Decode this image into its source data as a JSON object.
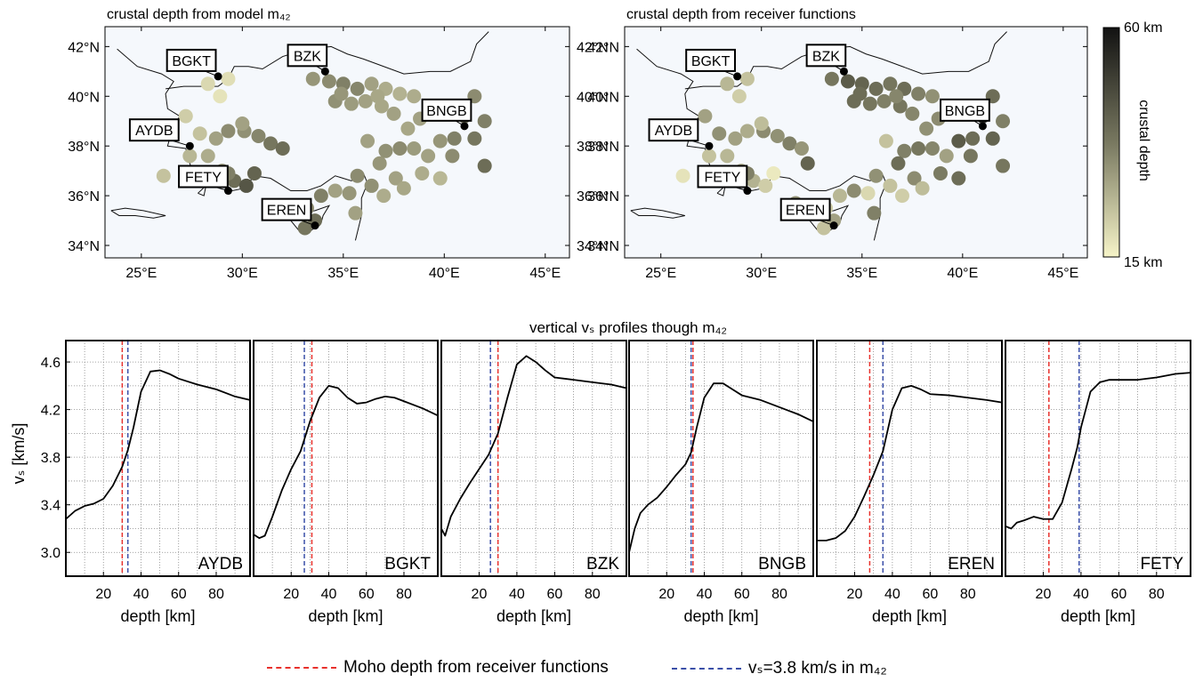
{
  "maps": [
    {
      "title": "crustal depth from model m₄₂",
      "lat_ticks": [
        "34°N",
        "36°N",
        "38°N",
        "40°N",
        "42°N"
      ],
      "lon_ticks": [
        "25°E",
        "30°E",
        "35°E",
        "40°E",
        "45°E"
      ],
      "stations": [
        {
          "name": "BGKT",
          "lon": 28.8,
          "lat": 40.8
        },
        {
          "name": "BZK",
          "lon": 34.1,
          "lat": 41.0
        },
        {
          "name": "AYDB",
          "lon": 27.4,
          "lat": 38.0
        },
        {
          "name": "BNGB",
          "lon": 41.0,
          "lat": 38.8
        },
        {
          "name": "FETY",
          "lon": 29.3,
          "lat": 36.2
        },
        {
          "name": "EREN",
          "lon": 33.6,
          "lat": 34.8
        }
      ]
    },
    {
      "title": "crustal depth from receiver functions",
      "lat_ticks": [
        "34°N",
        "36°N",
        "38°N",
        "40°N",
        "42°N"
      ],
      "lon_ticks": [
        "25°E",
        "30°E",
        "35°E",
        "40°E",
        "45°E"
      ],
      "stations": [
        {
          "name": "BGKT",
          "lon": 28.8,
          "lat": 40.8
        },
        {
          "name": "BZK",
          "lon": 34.1,
          "lat": 41.0
        },
        {
          "name": "AYDB",
          "lon": 27.4,
          "lat": 38.0
        },
        {
          "name": "BNGB",
          "lon": 41.0,
          "lat": 38.8
        },
        {
          "name": "FETY",
          "lon": 29.3,
          "lat": 36.2
        },
        {
          "name": "EREN",
          "lon": 33.6,
          "lat": 34.8
        }
      ]
    }
  ],
  "colorbar": {
    "top": "60 km",
    "bottom": "15 km",
    "label": "crustal depth",
    "color_low": "#f6f4c8",
    "color_high": "#121212"
  },
  "profiles_title": "vertical vₛ profiles though m₄₂",
  "ylabel": "vₛ [km/s]",
  "xlabel": "depth [km]",
  "y_ticks": [
    "3.0",
    "3.4",
    "3.8",
    "4.2",
    "4.6"
  ],
  "x_ticks": [
    "20",
    "40",
    "60",
    "80"
  ],
  "legend": {
    "red_label": "Moho depth from receiver functions",
    "blue_label": "vₛ=3.8 km/s in m₄₂",
    "red_color": "#e8312c",
    "blue_color": "#3a4fa8"
  },
  "chart_data": [
    {
      "type": "line",
      "title": "",
      "xlabel": "depth [km]",
      "ylabel": "vs [km/s]",
      "xlim": [
        0,
        98
      ],
      "ylim": [
        2.8,
        4.78
      ],
      "grid": true,
      "series": [
        {
          "name": "AYDB",
          "x": [
            0,
            5,
            10,
            15,
            20,
            25,
            30,
            33,
            36,
            40,
            45,
            50,
            55,
            60,
            70,
            80,
            90,
            98
          ],
          "y": [
            3.28,
            3.35,
            3.39,
            3.41,
            3.45,
            3.56,
            3.72,
            3.86,
            4.05,
            4.35,
            4.52,
            4.53,
            4.5,
            4.46,
            4.41,
            4.37,
            4.31,
            4.28
          ],
          "moho_rf": 30,
          "vs38_depth": 33
        },
        {
          "name": "BGKT",
          "x": [
            0,
            3,
            6,
            10,
            15,
            20,
            25,
            30,
            35,
            40,
            45,
            50,
            55,
            60,
            65,
            70,
            75,
            80,
            90,
            98
          ],
          "y": [
            3.15,
            3.12,
            3.14,
            3.3,
            3.52,
            3.7,
            3.85,
            4.1,
            4.3,
            4.4,
            4.38,
            4.3,
            4.25,
            4.26,
            4.29,
            4.31,
            4.3,
            4.27,
            4.21,
            4.15
          ],
          "moho_rf": 31,
          "vs38_depth": 27
        },
        {
          "name": "BZK",
          "x": [
            0,
            2,
            5,
            10,
            15,
            20,
            25,
            30,
            35,
            40,
            45,
            50,
            55,
            60,
            70,
            80,
            90,
            98
          ],
          "y": [
            3.2,
            3.14,
            3.3,
            3.45,
            3.58,
            3.7,
            3.82,
            4.0,
            4.3,
            4.58,
            4.65,
            4.6,
            4.53,
            4.47,
            4.45,
            4.43,
            4.41,
            4.38
          ],
          "moho_rf": 30,
          "vs38_depth": 26
        },
        {
          "name": "BNGB",
          "x": [
            0,
            3,
            6,
            10,
            15,
            20,
            25,
            30,
            33,
            36,
            40,
            45,
            50,
            55,
            60,
            70,
            80,
            90,
            98
          ],
          "y": [
            3.0,
            3.2,
            3.33,
            3.4,
            3.46,
            3.55,
            3.65,
            3.74,
            3.84,
            4.05,
            4.3,
            4.42,
            4.42,
            4.37,
            4.32,
            4.28,
            4.22,
            4.16,
            4.1
          ],
          "moho_rf": 34,
          "vs38_depth": 33
        },
        {
          "name": "EREN",
          "x": [
            0,
            5,
            10,
            15,
            20,
            25,
            30,
            35,
            40,
            45,
            50,
            55,
            60,
            70,
            80,
            90,
            98
          ],
          "y": [
            3.1,
            3.1,
            3.12,
            3.18,
            3.3,
            3.47,
            3.65,
            3.85,
            4.2,
            4.38,
            4.4,
            4.37,
            4.33,
            4.32,
            4.3,
            4.28,
            4.26
          ],
          "moho_rf": 28,
          "vs38_depth": 35
        },
        {
          "name": "FETY",
          "x": [
            0,
            3,
            6,
            10,
            15,
            20,
            25,
            30,
            35,
            38,
            40,
            45,
            50,
            55,
            60,
            70,
            80,
            90,
            98
          ],
          "y": [
            3.22,
            3.2,
            3.25,
            3.27,
            3.3,
            3.28,
            3.28,
            3.42,
            3.7,
            3.88,
            4.05,
            4.35,
            4.43,
            4.45,
            4.45,
            4.45,
            4.47,
            4.5,
            4.51
          ],
          "moho_rf": 23,
          "vs38_depth": 39
        }
      ]
    }
  ],
  "map_dots_m42": [
    {
      "lon": 28.3,
      "lat": 40.5,
      "d": 20
    },
    {
      "lon": 28.9,
      "lat": 40.0,
      "d": 18
    },
    {
      "lon": 29.3,
      "lat": 40.7,
      "d": 19
    },
    {
      "lon": 27.2,
      "lat": 39.2,
      "d": 22
    },
    {
      "lon": 27.9,
      "lat": 38.5,
      "d": 24
    },
    {
      "lon": 28.7,
      "lat": 38.3,
      "d": 30
    },
    {
      "lon": 29.3,
      "lat": 38.6,
      "d": 34
    },
    {
      "lon": 30.1,
      "lat": 38.6,
      "d": 33
    },
    {
      "lon": 30.8,
      "lat": 38.4,
      "d": 35
    },
    {
      "lon": 31.4,
      "lat": 38.1,
      "d": 38
    },
    {
      "lon": 32.0,
      "lat": 37.9,
      "d": 40
    },
    {
      "lon": 30.0,
      "lat": 38.9,
      "d": 30
    },
    {
      "lon": 27.4,
      "lat": 37.6,
      "d": 26
    },
    {
      "lon": 28.3,
      "lat": 37.6,
      "d": 28
    },
    {
      "lon": 29.0,
      "lat": 37.0,
      "d": 32
    },
    {
      "lon": 29.6,
      "lat": 36.6,
      "d": 40
    },
    {
      "lon": 30.2,
      "lat": 36.4,
      "d": 45
    },
    {
      "lon": 30.6,
      "lat": 36.9,
      "d": 42
    },
    {
      "lon": 29.3,
      "lat": 36.9,
      "d": 36
    },
    {
      "lon": 26.1,
      "lat": 36.8,
      "d": 24
    },
    {
      "lon": 33.5,
      "lat": 40.7,
      "d": 32
    },
    {
      "lon": 34.3,
      "lat": 40.6,
      "d": 34
    },
    {
      "lon": 35.0,
      "lat": 40.5,
      "d": 36
    },
    {
      "lon": 35.7,
      "lat": 40.3,
      "d": 35
    },
    {
      "lon": 36.4,
      "lat": 40.5,
      "d": 30
    },
    {
      "lon": 37.1,
      "lat": 40.3,
      "d": 28
    },
    {
      "lon": 37.8,
      "lat": 40.1,
      "d": 27
    },
    {
      "lon": 38.5,
      "lat": 40.0,
      "d": 28
    },
    {
      "lon": 39.3,
      "lat": 39.6,
      "d": 30
    },
    {
      "lon": 40.2,
      "lat": 39.6,
      "d": 32
    },
    {
      "lon": 40.9,
      "lat": 39.5,
      "d": 33
    },
    {
      "lon": 41.5,
      "lat": 40.0,
      "d": 34
    },
    {
      "lon": 42.0,
      "lat": 39.0,
      "d": 36
    },
    {
      "lon": 41.5,
      "lat": 38.3,
      "d": 38
    },
    {
      "lon": 42.0,
      "lat": 37.2,
      "d": 40
    },
    {
      "lon": 41.0,
      "lat": 39.2,
      "d": 42
    },
    {
      "lon": 40.5,
      "lat": 38.3,
      "d": 36
    },
    {
      "lon": 39.8,
      "lat": 38.2,
      "d": 32
    },
    {
      "lon": 39.2,
      "lat": 37.6,
      "d": 30
    },
    {
      "lon": 38.5,
      "lat": 37.9,
      "d": 31
    },
    {
      "lon": 37.8,
      "lat": 37.9,
      "d": 34
    },
    {
      "lon": 37.1,
      "lat": 37.8,
      "d": 33
    },
    {
      "lon": 36.2,
      "lat": 38.2,
      "d": 30
    },
    {
      "lon": 36.8,
      "lat": 37.3,
      "d": 32
    },
    {
      "lon": 38.9,
      "lat": 36.9,
      "d": 28
    },
    {
      "lon": 39.8,
      "lat": 36.7,
      "d": 26
    },
    {
      "lon": 37.6,
      "lat": 36.7,
      "d": 30
    },
    {
      "lon": 36.4,
      "lat": 36.4,
      "d": 33
    },
    {
      "lon": 35.7,
      "lat": 36.8,
      "d": 34
    },
    {
      "lon": 35.3,
      "lat": 36.1,
      "d": 32
    },
    {
      "lon": 34.6,
      "lat": 36.2,
      "d": 30
    },
    {
      "lon": 33.9,
      "lat": 36.0,
      "d": 36
    },
    {
      "lon": 33.2,
      "lat": 35.5,
      "d": 34
    },
    {
      "lon": 33.6,
      "lat": 35.0,
      "d": 40
    },
    {
      "lon": 33.1,
      "lat": 34.7,
      "d": 38
    },
    {
      "lon": 35.6,
      "lat": 35.3,
      "d": 30
    },
    {
      "lon": 34.6,
      "lat": 39.8,
      "d": 33
    },
    {
      "lon": 35.4,
      "lat": 39.7,
      "d": 31
    },
    {
      "lon": 36.1,
      "lat": 39.8,
      "d": 30
    },
    {
      "lon": 36.9,
      "lat": 39.6,
      "d": 29
    },
    {
      "lon": 37.5,
      "lat": 39.3,
      "d": 30
    },
    {
      "lon": 38.2,
      "lat": 38.7,
      "d": 29
    },
    {
      "lon": 37.0,
      "lat": 36.0,
      "d": 28
    },
    {
      "lon": 38.0,
      "lat": 36.3,
      "d": 29
    },
    {
      "lon": 34.9,
      "lat": 40.1,
      "d": 32
    },
    {
      "lon": 36.7,
      "lat": 40.0,
      "d": 29
    },
    {
      "lon": 38.8,
      "lat": 39.1,
      "d": 30
    },
    {
      "lon": 40.4,
      "lat": 37.6,
      "d": 34
    }
  ],
  "map_dots_rf": [
    {
      "lon": 28.3,
      "lat": 40.5,
      "d": 26
    },
    {
      "lon": 28.9,
      "lat": 40.0,
      "d": 22
    },
    {
      "lon": 29.3,
      "lat": 40.7,
      "d": 24
    },
    {
      "lon": 27.2,
      "lat": 39.2,
      "d": 30
    },
    {
      "lon": 27.9,
      "lat": 38.5,
      "d": 33
    },
    {
      "lon": 28.7,
      "lat": 38.3,
      "d": 30
    },
    {
      "lon": 29.3,
      "lat": 38.6,
      "d": 28
    },
    {
      "lon": 30.1,
      "lat": 38.6,
      "d": 34
    },
    {
      "lon": 30.8,
      "lat": 38.4,
      "d": 33
    },
    {
      "lon": 31.4,
      "lat": 38.1,
      "d": 36
    },
    {
      "lon": 32.0,
      "lat": 37.9,
      "d": 32
    },
    {
      "lon": 30.0,
      "lat": 38.9,
      "d": 25
    },
    {
      "lon": 27.4,
      "lat": 37.6,
      "d": 24
    },
    {
      "lon": 28.3,
      "lat": 37.6,
      "d": 26
    },
    {
      "lon": 29.0,
      "lat": 37.0,
      "d": 28
    },
    {
      "lon": 29.6,
      "lat": 36.6,
      "d": 27
    },
    {
      "lon": 30.2,
      "lat": 36.4,
      "d": 22
    },
    {
      "lon": 30.6,
      "lat": 36.9,
      "d": 17
    },
    {
      "lon": 29.3,
      "lat": 36.9,
      "d": 36
    },
    {
      "lon": 26.1,
      "lat": 36.8,
      "d": 18
    },
    {
      "lon": 33.5,
      "lat": 40.7,
      "d": 38
    },
    {
      "lon": 34.3,
      "lat": 40.6,
      "d": 44
    },
    {
      "lon": 35.0,
      "lat": 40.5,
      "d": 42
    },
    {
      "lon": 35.7,
      "lat": 40.3,
      "d": 40
    },
    {
      "lon": 36.4,
      "lat": 40.5,
      "d": 38
    },
    {
      "lon": 37.1,
      "lat": 40.3,
      "d": 40
    },
    {
      "lon": 37.8,
      "lat": 40.1,
      "d": 36
    },
    {
      "lon": 38.5,
      "lat": 40.0,
      "d": 33
    },
    {
      "lon": 39.3,
      "lat": 39.6,
      "d": 38
    },
    {
      "lon": 40.2,
      "lat": 39.6,
      "d": 36
    },
    {
      "lon": 40.9,
      "lat": 39.5,
      "d": 45
    },
    {
      "lon": 41.5,
      "lat": 40.0,
      "d": 40
    },
    {
      "lon": 42.0,
      "lat": 39.0,
      "d": 36
    },
    {
      "lon": 41.5,
      "lat": 38.3,
      "d": 42
    },
    {
      "lon": 42.0,
      "lat": 37.2,
      "d": 38
    },
    {
      "lon": 41.0,
      "lat": 39.2,
      "d": 54
    },
    {
      "lon": 40.5,
      "lat": 38.3,
      "d": 40
    },
    {
      "lon": 39.8,
      "lat": 38.2,
      "d": 44
    },
    {
      "lon": 39.2,
      "lat": 37.6,
      "d": 30
    },
    {
      "lon": 38.5,
      "lat": 37.9,
      "d": 35
    },
    {
      "lon": 37.8,
      "lat": 37.9,
      "d": 38
    },
    {
      "lon": 37.1,
      "lat": 37.8,
      "d": 36
    },
    {
      "lon": 36.2,
      "lat": 38.2,
      "d": 24
    },
    {
      "lon": 36.8,
      "lat": 37.3,
      "d": 40
    },
    {
      "lon": 38.9,
      "lat": 36.9,
      "d": 37
    },
    {
      "lon": 39.8,
      "lat": 36.7,
      "d": 40
    },
    {
      "lon": 37.6,
      "lat": 36.7,
      "d": 34
    },
    {
      "lon": 36.4,
      "lat": 36.4,
      "d": 24
    },
    {
      "lon": 35.7,
      "lat": 36.8,
      "d": 33
    },
    {
      "lon": 35.3,
      "lat": 36.1,
      "d": 20
    },
    {
      "lon": 34.6,
      "lat": 36.2,
      "d": 34
    },
    {
      "lon": 33.9,
      "lat": 36.0,
      "d": 26
    },
    {
      "lon": 33.2,
      "lat": 35.5,
      "d": 22
    },
    {
      "lon": 33.6,
      "lat": 35.0,
      "d": 30
    },
    {
      "lon": 33.1,
      "lat": 34.7,
      "d": 24
    },
    {
      "lon": 35.6,
      "lat": 35.3,
      "d": 36
    },
    {
      "lon": 34.6,
      "lat": 39.8,
      "d": 40
    },
    {
      "lon": 35.4,
      "lat": 39.7,
      "d": 38
    },
    {
      "lon": 36.1,
      "lat": 39.8,
      "d": 36
    },
    {
      "lon": 36.9,
      "lat": 39.6,
      "d": 38
    },
    {
      "lon": 37.5,
      "lat": 39.3,
      "d": 35
    },
    {
      "lon": 38.2,
      "lat": 38.7,
      "d": 33
    },
    {
      "lon": 37.0,
      "lat": 36.0,
      "d": 22
    },
    {
      "lon": 38.0,
      "lat": 36.3,
      "d": 25
    },
    {
      "lon": 34.9,
      "lat": 40.1,
      "d": 40
    },
    {
      "lon": 36.7,
      "lat": 40.0,
      "d": 35
    },
    {
      "lon": 38.8,
      "lat": 39.1,
      "d": 34
    },
    {
      "lon": 40.4,
      "lat": 37.6,
      "d": 38
    },
    {
      "lon": 32.3,
      "lat": 37.3,
      "d": 42
    },
    {
      "lon": 31.7,
      "lat": 35.7,
      "d": 32
    }
  ]
}
